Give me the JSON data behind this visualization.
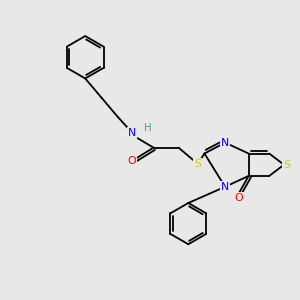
{
  "background_color": "#e8e8e8",
  "atom_colors": {
    "C": "#000000",
    "N": "#0000ff",
    "O": "#ff0000",
    "S": "#cccc00",
    "H": "#4a9a9a"
  },
  "lw": 1.3,
  "fs": 7.8,
  "xlim": [
    0,
    10
  ],
  "ylim": [
    0,
    10
  ]
}
